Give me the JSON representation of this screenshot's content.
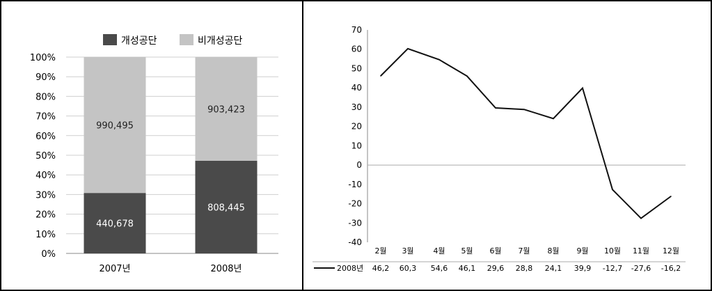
{
  "chart_data": [
    {
      "type": "bar",
      "stacked": true,
      "normalized": true,
      "categories": [
        "2007년",
        "2008년"
      ],
      "series": [
        {
          "name": "개성공단",
          "values": [
            440678,
            808445
          ],
          "labels": [
            "440,678",
            "808,445"
          ],
          "color": "#4a4a4a"
        },
        {
          "name": "비개성공단",
          "values": [
            990495,
            903423
          ],
          "labels": [
            "990,495",
            "903,423"
          ],
          "color": "#c4c4c4"
        }
      ],
      "y_ticks": [
        "0%",
        "10%",
        "20%",
        "30%",
        "40%",
        "50%",
        "60%",
        "70%",
        "80%",
        "90%",
        "100%"
      ],
      "ylim": [
        0,
        100
      ],
      "legend_position": "top-center",
      "grid": true
    },
    {
      "type": "line",
      "categories": [
        "2월",
        "3월",
        "4월",
        "5월",
        "6월",
        "7월",
        "8월",
        "9월",
        "10월",
        "11월",
        "12월"
      ],
      "series": [
        {
          "name": "2008년",
          "values": [
            46.2,
            60.3,
            54.6,
            46.1,
            29.6,
            28.8,
            24.1,
            39.9,
            -12.7,
            -27.6,
            -16.2
          ],
          "labels": [
            "46,2",
            "60,3",
            "54,6",
            "46,1",
            "29,6",
            "28,8",
            "24,1",
            "39,9",
            "-12,7",
            "-27,6",
            "-16,2"
          ],
          "color": "#111111"
        }
      ],
      "y_ticks": [
        "70",
        "60",
        "50",
        "40",
        "30",
        "20",
        "10",
        "0",
        "-10",
        "-20",
        "-30",
        "-40"
      ],
      "ylim": [
        -40,
        70
      ],
      "grid": false,
      "data_table": true
    }
  ]
}
